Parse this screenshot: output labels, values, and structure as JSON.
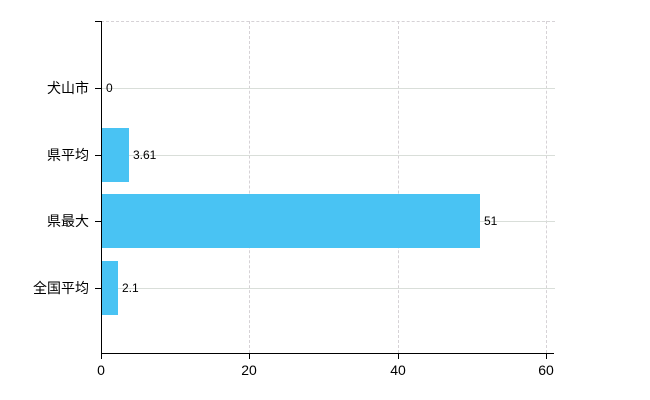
{
  "chart_data": {
    "type": "bar",
    "orientation": "horizontal",
    "title": "",
    "categories": [
      "犬山市",
      "県平均",
      "県最大",
      "全国平均"
    ],
    "values": [
      0,
      3.61,
      51,
      2.1
    ],
    "value_labels": [
      "0",
      "3.61",
      "51",
      "2.1"
    ],
    "x_ticks": [
      0,
      20,
      40,
      60
    ],
    "x_tick_labels": [
      "0",
      "20",
      "40",
      "60"
    ],
    "xlim": [
      0,
      61
    ],
    "grid": {
      "vertical": "dashed",
      "horizontal": "solid",
      "top_border": "dashed"
    },
    "legend": "none",
    "colors": {
      "bar": "#49c3f3",
      "grid_solid": "#d9ded9",
      "grid_dashed": "#d6d2d6",
      "axis": "#000000",
      "text": "#000000",
      "background": "#ffffff"
    }
  }
}
